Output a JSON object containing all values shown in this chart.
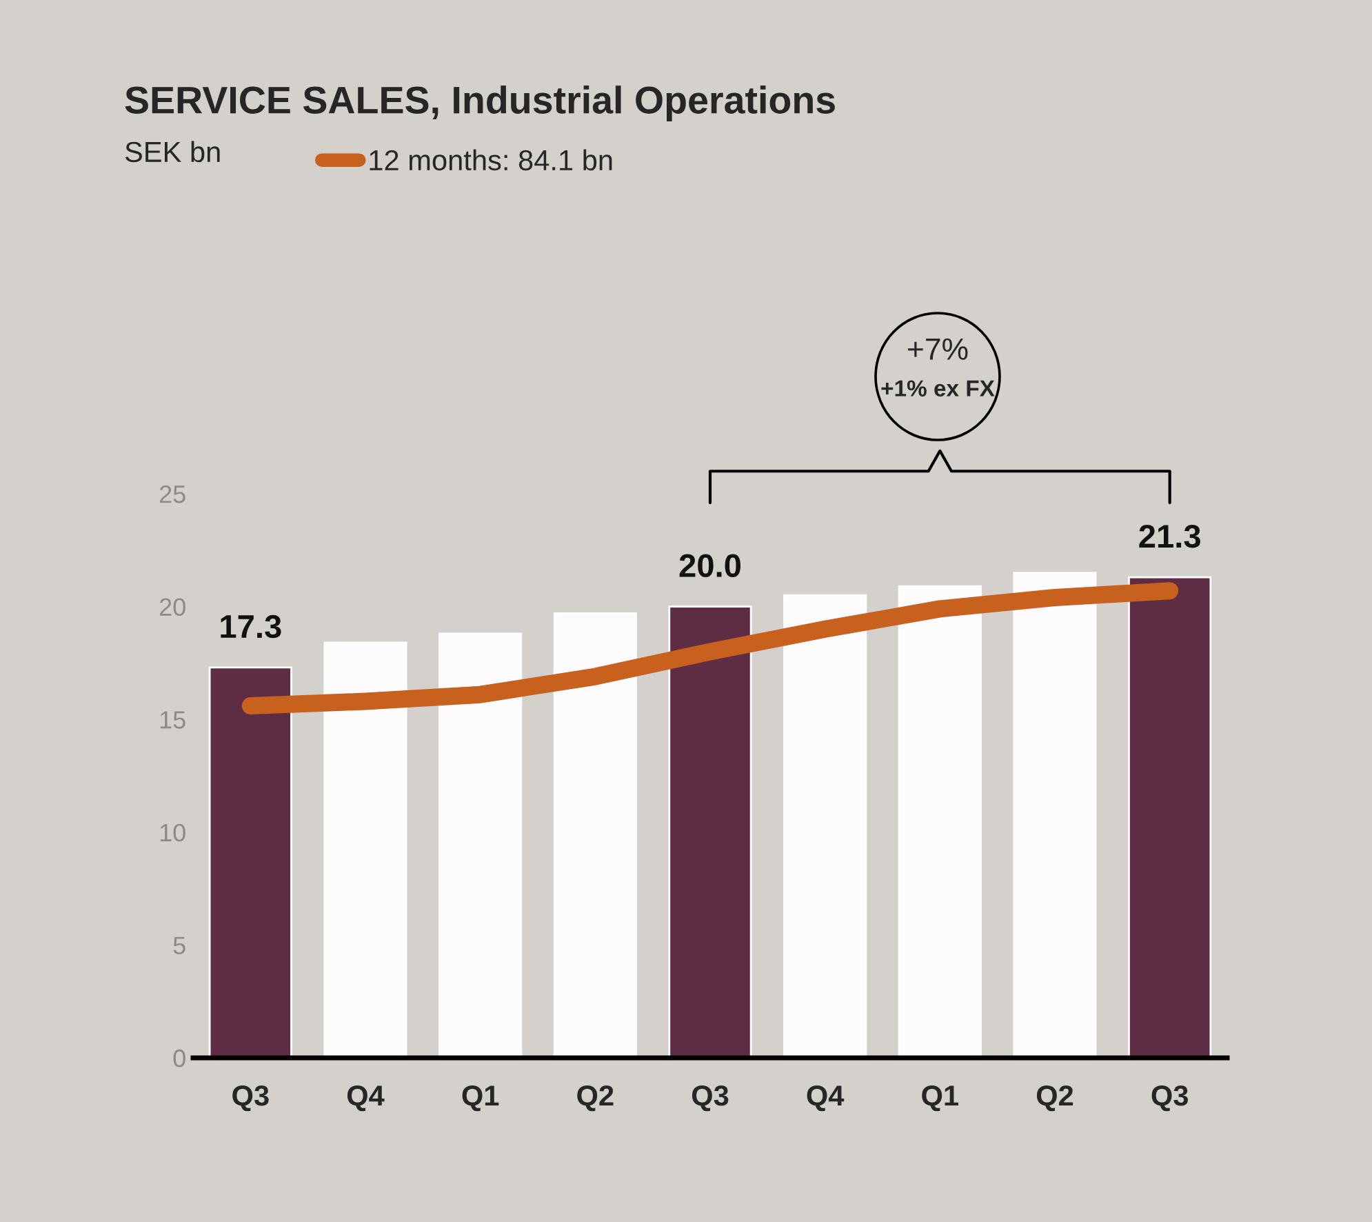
{
  "chart_data": {
    "type": "bar",
    "title": "SERVICE SALES, Industrial Operations",
    "subtitle": "SEK bn",
    "categories": [
      "Q3",
      "Q4",
      "Q1",
      "Q2",
      "Q3",
      "Q4",
      "Q1",
      "Q2",
      "Q3"
    ],
    "series": [
      {
        "colors": [
          "#5e2d44",
          "#fdfbfd",
          "#fdfbfd",
          "#fdfbfd",
          "#5e2d44",
          "#fdfbfd",
          "#fdfbfd",
          "#fdfbfd",
          "#5e2d44"
        ],
        "values": [
          17.3,
          18.4,
          18.8,
          19.7,
          20.0,
          20.5,
          20.9,
          21.5,
          21.3
        ],
        "value_labels": [
          "17.3",
          null,
          null,
          null,
          "20.0",
          null,
          null,
          null,
          "21.3"
        ]
      },
      {
        "type": "line",
        "name": "12 months: 84.1 bn",
        "color": "#c8601e",
        "values": [
          15.6,
          15.8,
          16.1,
          16.9,
          18.0,
          19.0,
          19.9,
          20.4,
          20.7
        ]
      }
    ],
    "ylim": [
      0,
      25
    ],
    "yticks": [
      0,
      5,
      10,
      15,
      20,
      25
    ],
    "annotations": [
      "+7%",
      "+1% ex FX"
    ],
    "legend": "top left",
    "grid": false
  }
}
